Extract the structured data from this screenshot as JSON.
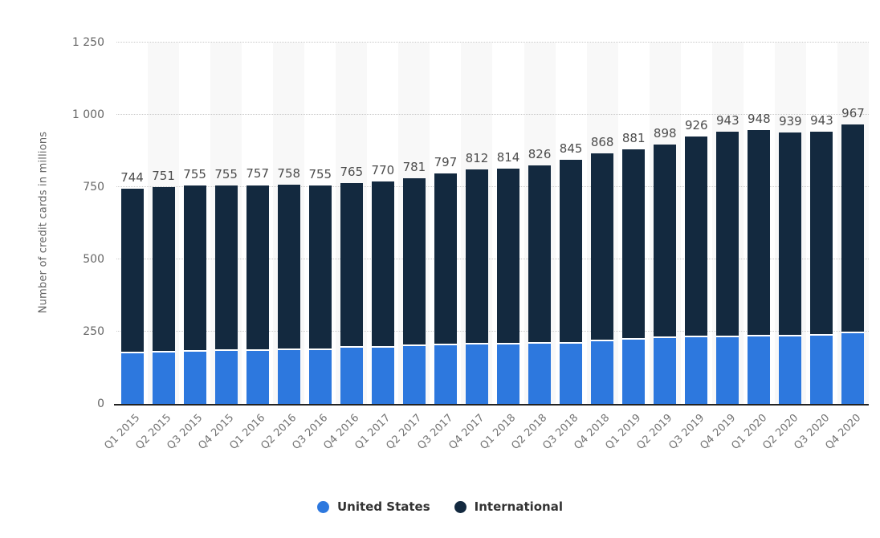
{
  "chart_data": {
    "type": "bar",
    "stacked": true,
    "title": "",
    "xlabel": "",
    "ylabel": "Number of credit cards in millions",
    "ylim": [
      0,
      1250
    ],
    "yticks": [
      0,
      250,
      500,
      750,
      1000,
      1250
    ],
    "ytick_labels": [
      "0",
      "250",
      "500",
      "750",
      "1 000",
      "1 250"
    ],
    "grid": "dotted-horizontal",
    "legend_position": "bottom",
    "background_stripes": "alternating-columns",
    "categories": [
      "Q1 2015",
      "Q2 2015",
      "Q3 2015",
      "Q4 2015",
      "Q1 2016",
      "Q2 2016",
      "Q3 2016",
      "Q4 2016",
      "Q1 2017",
      "Q2 2017",
      "Q3 2017",
      "Q4 2017",
      "Q1 2018",
      "Q2 2018",
      "Q3 2018",
      "Q4 2018",
      "Q1 2019",
      "Q2 2019",
      "Q3 2019",
      "Q4 2019",
      "Q1 2020",
      "Q2 2020",
      "Q3 2020",
      "Q4 2020"
    ],
    "series": [
      {
        "name": "United States",
        "color": "#2d78de",
        "values": [
          181,
          182,
          187,
          190,
          190,
          193,
          193,
          199,
          200,
          206,
          209,
          212,
          212,
          214,
          215,
          223,
          228,
          232,
          235,
          237,
          238,
          240,
          241,
          250
        ]
      },
      {
        "name": "International",
        "color": "#13293f",
        "values": [
          563,
          569,
          568,
          565,
          567,
          565,
          562,
          566,
          570,
          575,
          588,
          600,
          602,
          612,
          630,
          645,
          653,
          666,
          691,
          706,
          710,
          699,
          702,
          717
        ]
      }
    ],
    "totals": [
      744,
      751,
      755,
      755,
      757,
      758,
      755,
      765,
      770,
      781,
      797,
      812,
      814,
      826,
      845,
      868,
      881,
      898,
      926,
      943,
      948,
      939,
      943,
      967
    ],
    "total_labels_shown": true
  },
  "legend": {
    "items": [
      {
        "label": "United States",
        "color": "#2d78de"
      },
      {
        "label": "International",
        "color": "#13293f"
      }
    ]
  },
  "colors": {
    "united_states": "#2d78de",
    "international": "#13293f",
    "column_stripe": "#f8f8f8",
    "gridline": "#c9c9c9",
    "axis_line": "#222222",
    "total_label_text": "#4c4c4c",
    "tick_label_text": "#666666",
    "x_label_text": "#737373",
    "legend_text": "#333333"
  }
}
